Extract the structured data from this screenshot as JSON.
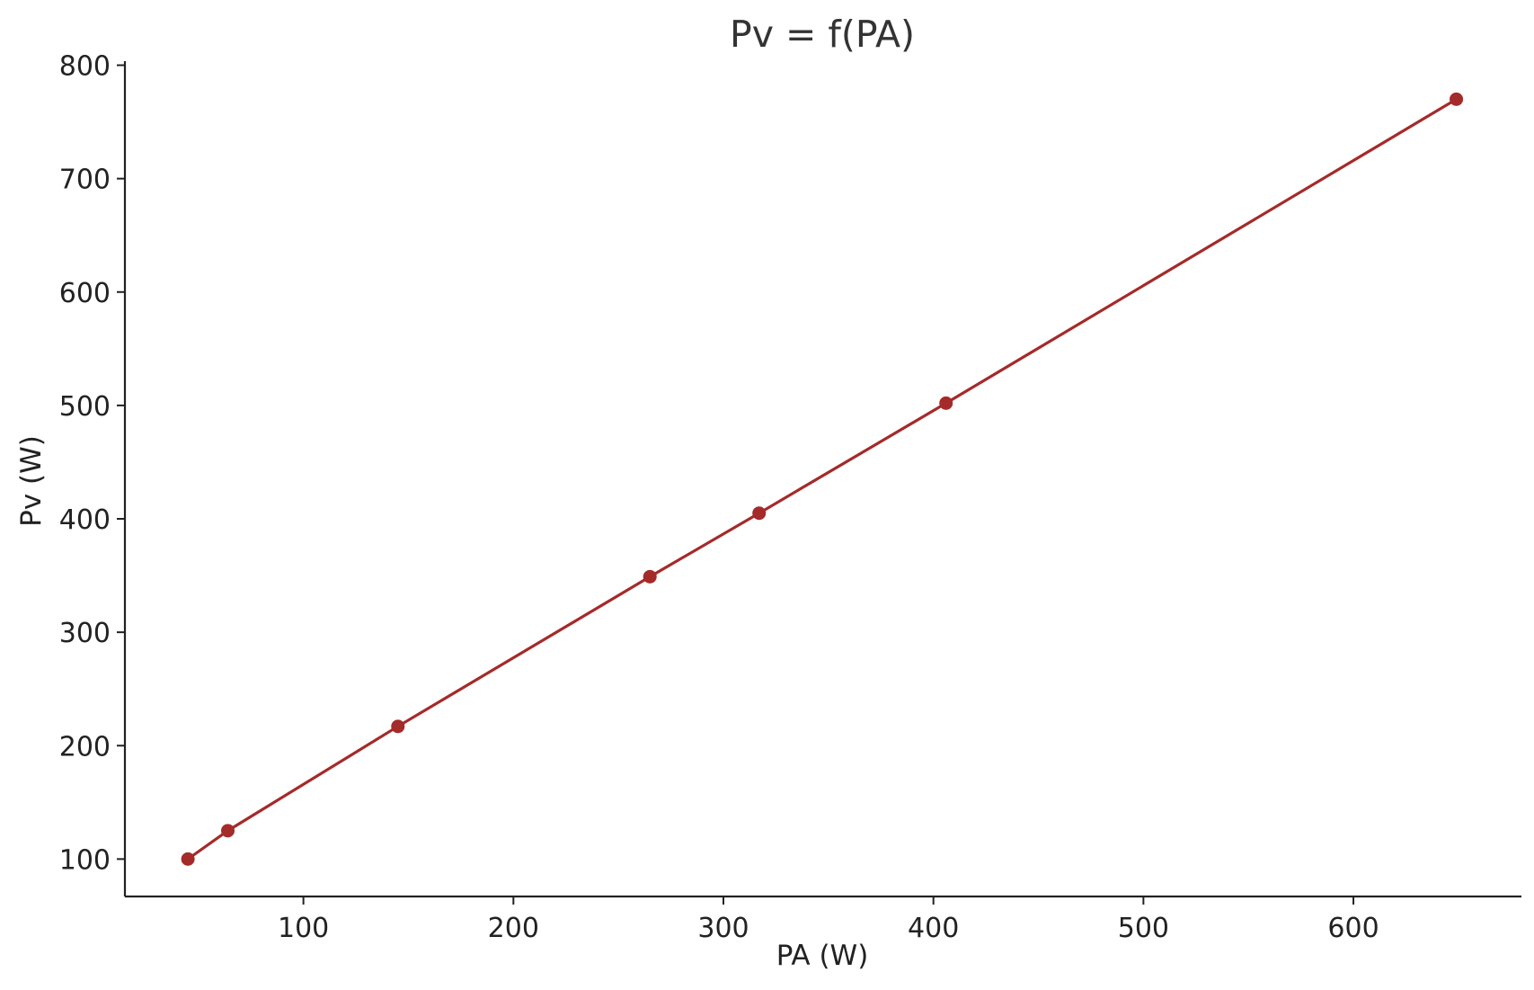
{
  "chart_data": {
    "type": "line",
    "title": "Pv = f(PA)",
    "xlabel": "PA (W)",
    "ylabel": "Pv (W)",
    "xlim": [
      15,
      680
    ],
    "ylim": [
      67,
      802
    ],
    "xticks": [
      100,
      200,
      300,
      400,
      500,
      600
    ],
    "yticks": [
      100,
      200,
      300,
      400,
      500,
      600,
      700,
      800
    ],
    "grid": false,
    "legend": "none",
    "series": [
      {
        "color": "#a52a2a",
        "marker": "circle",
        "x": [
          45,
          64,
          145,
          265,
          317,
          406,
          649
        ],
        "y": [
          100,
          125,
          217,
          349,
          405,
          502,
          770
        ]
      }
    ]
  }
}
